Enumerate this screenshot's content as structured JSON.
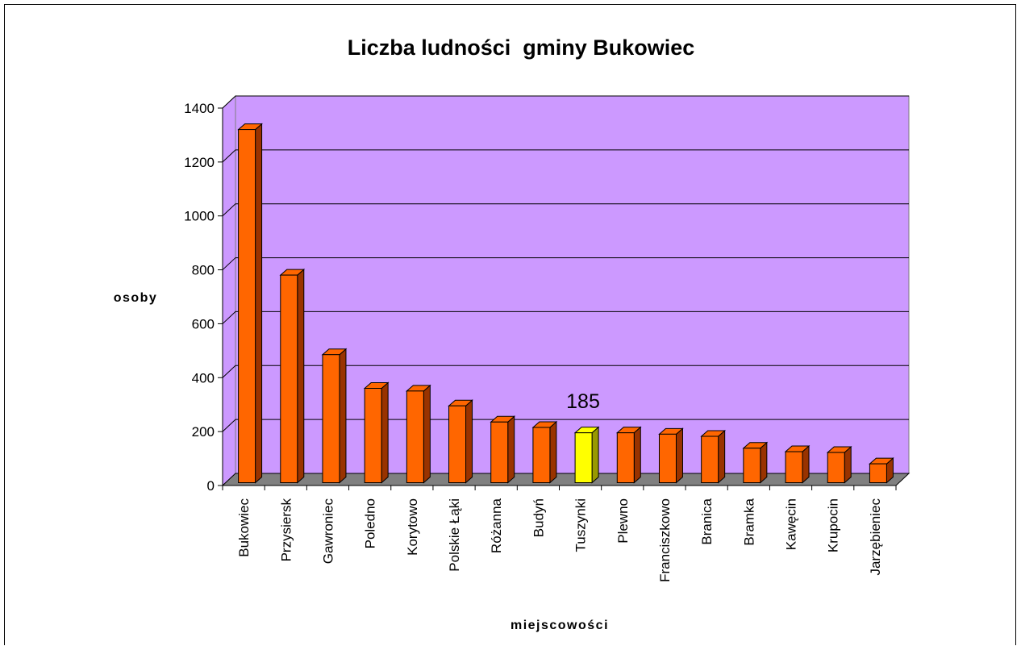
{
  "chart_data": {
    "type": "bar",
    "title": "Liczba ludności  gminy Bukowiec",
    "xlabel": "miejscowości",
    "ylabel": "osoby",
    "ylim": [
      0,
      1400
    ],
    "yticks": [
      0,
      200,
      400,
      600,
      800,
      1000,
      1200,
      1400
    ],
    "grid": true,
    "legend": "none",
    "categories": [
      "Bukowiec",
      "Przysiersk",
      "Gawroniec",
      "Poledno",
      "Korytowo",
      "Polskie Łąki",
      "Różanna",
      "Budyń",
      "Tuszynki",
      "Plewno",
      "Franciszkowo",
      "Branica",
      "Bramka",
      "Kawęcin",
      "Krupocin",
      "Jarzębieniec"
    ],
    "values": [
      1310,
      770,
      475,
      350,
      340,
      285,
      225,
      205,
      185,
      185,
      180,
      172,
      128,
      115,
      112,
      70
    ],
    "highlight_index": 8,
    "annotation": "185",
    "colors": {
      "plot_background": "#cc99ff",
      "floor": "#808080",
      "bar_front": "#ff6600",
      "bar_side": "#993300",
      "bar_top": "#ff6600",
      "highlight_front": "#ffff00",
      "highlight_side": "#999900",
      "grid": "#000000"
    }
  }
}
